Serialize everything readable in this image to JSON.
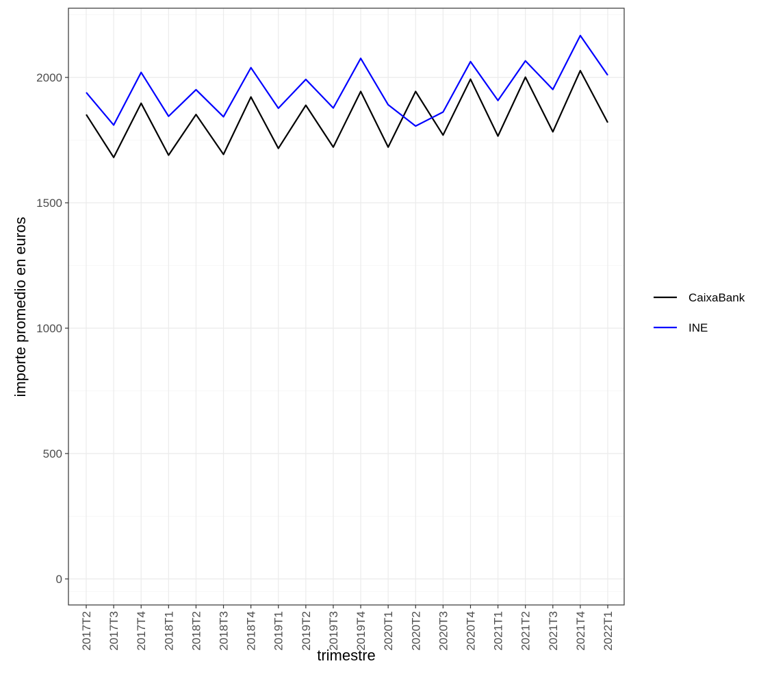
{
  "chart_data": {
    "type": "line",
    "xlabel": "trimestre",
    "ylabel": "importe promedio en euros",
    "categories": [
      "2017T2",
      "2017T3",
      "2017T4",
      "2018T1",
      "2018T2",
      "2018T3",
      "2018T4",
      "2019T1",
      "2019T2",
      "2019T3",
      "2019T4",
      "2020T1",
      "2020T2",
      "2020T3",
      "2020T4",
      "2021T1",
      "2021T2",
      "2021T3",
      "2021T4",
      "2022T1"
    ],
    "ylim": [
      -100,
      2270
    ],
    "yticks": [
      0,
      500,
      1000,
      1500,
      2000
    ],
    "grid": true,
    "legend_position": "right",
    "series": [
      {
        "name": "CaixaBank",
        "color": "#000000",
        "values": [
          1852,
          1681,
          1897,
          1690,
          1852,
          1693,
          1922,
          1717,
          1889,
          1722,
          1944,
          1722,
          1944,
          1770,
          1993,
          1766,
          2001,
          1783,
          2027,
          1820
        ]
      },
      {
        "name": "INE",
        "color": "#0000FF",
        "values": [
          1940,
          1810,
          2020,
          1845,
          1951,
          1843,
          2039,
          1877,
          1992,
          1878,
          2076,
          1891,
          1806,
          1862,
          2063,
          1908,
          2066,
          1952,
          2167,
          2009
        ]
      }
    ]
  }
}
